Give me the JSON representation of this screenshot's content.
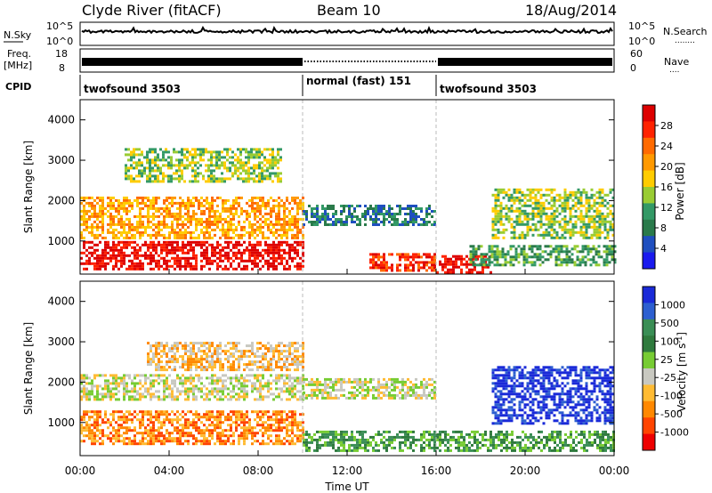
{
  "header": {
    "station": "Clyde River (fitACF)",
    "beam": "Beam 10",
    "date": "18/Aug/2014"
  },
  "nsky_panel": {
    "left_label": "N.Sky",
    "left_ticks": [
      "10^5",
      "10^0"
    ],
    "right_ticks": [
      "10^5",
      "10^0"
    ],
    "right_label": "N.Search",
    "right_dots": "........"
  },
  "freq_panel": {
    "left_label_top": "Freq.",
    "left_label_bottom": "[MHz]",
    "left_ticks": [
      "18",
      "8"
    ],
    "right_ticks": [
      "60",
      "0"
    ],
    "right_label": "Nave",
    "right_dots": "...."
  },
  "cpid": {
    "label": "CPID",
    "segments": [
      {
        "name": "twofsound 3503",
        "start_hour": 0,
        "end_hour": 10
      },
      {
        "name": "normal (fast) 151",
        "start_hour": 10,
        "end_hour": 16
      },
      {
        "name": "twofsound 3503",
        "start_hour": 16,
        "end_hour": 24
      }
    ]
  },
  "xaxis": {
    "ticks": [
      "00:00",
      "04:00",
      "08:00",
      "12:00",
      "16:00",
      "20:00",
      "00:00"
    ],
    "label": "Time UT"
  },
  "chart_data": [
    {
      "type": "heatmap",
      "title": "Power",
      "ylabel": "Slant Range [km]",
      "xlim_hours": [
        0,
        24
      ],
      "ylim": [
        180,
        4500
      ],
      "yticks": [
        1000,
        2000,
        3000,
        4000
      ],
      "colorbar": {
        "label": "Power [dB]",
        "ticks": [
          "28",
          "24",
          "20",
          "16",
          "12",
          "8",
          "4"
        ],
        "colors": [
          "#dd0000",
          "#ff2200",
          "#ff6a00",
          "#ff9900",
          "#ffcc00",
          "#99cc33",
          "#339966",
          "#2a7a4a",
          "#1f4fbf",
          "#1a1aee"
        ]
      },
      "bands": [
        {
          "start_hour": 0,
          "end_hour": 10,
          "range_low": 300,
          "range_high": 1000,
          "level": 0
        },
        {
          "start_hour": 0,
          "end_hour": 10,
          "range_low": 1100,
          "range_high": 2100,
          "level": 3
        },
        {
          "start_hour": 2,
          "end_hour": 9,
          "range_low": 2500,
          "range_high": 3300,
          "level": 5
        },
        {
          "start_hour": 10,
          "end_hour": 16,
          "range_low": 1400,
          "range_high": 1900,
          "level": 7
        },
        {
          "start_hour": 13,
          "end_hour": 16,
          "range_low": 300,
          "range_high": 700,
          "level": 1
        },
        {
          "start_hour": 16,
          "end_hour": 18.5,
          "range_low": 250,
          "range_high": 650,
          "level": 0
        },
        {
          "start_hour": 17.5,
          "end_hour": 24,
          "range_low": 400,
          "range_high": 900,
          "level": 6
        },
        {
          "start_hour": 18.5,
          "end_hour": 24,
          "range_low": 1100,
          "range_high": 2300,
          "level": 5
        }
      ]
    },
    {
      "type": "heatmap",
      "title": "Velocity",
      "ylabel": "Slant Range [km]",
      "xlim_hours": [
        0,
        24
      ],
      "ylim": [
        180,
        4500
      ],
      "yticks": [
        1000,
        2000,
        3000,
        4000
      ],
      "colorbar": {
        "label": "Velocity [m s^-1]",
        "ticks": [
          "1000",
          "500",
          "100",
          "25",
          "-25",
          "-100",
          "-500",
          "-1000"
        ],
        "colors": [
          "#1a2ad8",
          "#2d5fd0",
          "#3a8e55",
          "#2f7a3d",
          "#77cc33",
          "#c8c8c0",
          "#ffbb33",
          "#ff8800",
          "#ff4400",
          "#ee0000"
        ]
      },
      "bands": [
        {
          "start_hour": 0,
          "end_hour": 10,
          "range_low": 500,
          "range_high": 1300,
          "level": 7
        },
        {
          "start_hour": 0,
          "end_hour": 10,
          "range_low": 1600,
          "range_high": 2200,
          "level": 5
        },
        {
          "start_hour": 3,
          "end_hour": 10,
          "range_low": 2300,
          "range_high": 3000,
          "level": 6
        },
        {
          "start_hour": 10,
          "end_hour": 16,
          "range_low": 1600,
          "range_high": 2100,
          "level": 5
        },
        {
          "start_hour": 10,
          "end_hour": 16,
          "range_low": 300,
          "range_high": 800,
          "level": 3
        },
        {
          "start_hour": 16,
          "end_hour": 24,
          "range_low": 300,
          "range_high": 800,
          "level": 3
        },
        {
          "start_hour": 18.5,
          "end_hour": 24,
          "range_low": 1000,
          "range_high": 2400,
          "level": 0
        }
      ]
    }
  ]
}
